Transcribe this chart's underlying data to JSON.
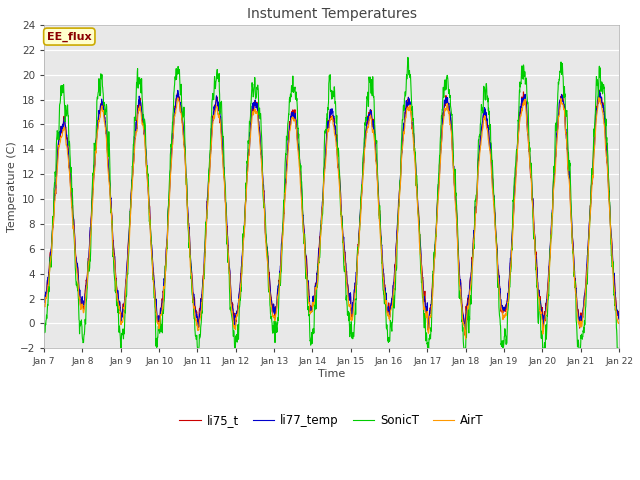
{
  "title": "Instument Temperatures",
  "xlabel": "Time",
  "ylabel": "Temperature (C)",
  "ylim": [
    -2,
    24
  ],
  "yticks": [
    -2,
    0,
    2,
    4,
    6,
    8,
    10,
    12,
    14,
    16,
    18,
    20,
    22,
    24
  ],
  "colors": {
    "li75_t": "#cc0000",
    "li77_temp": "#0000cc",
    "SonicT": "#00cc00",
    "AirT": "#ff9900"
  },
  "fig_bg": "#ffffff",
  "plot_bg": "#e8e8e8",
  "annotation_text": "EE_flux",
  "annotation_bg": "#ffffcc",
  "annotation_border": "#ccaa00",
  "x_labels": [
    "Jan 7",
    "Jan 8",
    "Jan 9",
    "Jan 10",
    "Jan 11",
    "Jan 12",
    "Jan 13",
    "Jan 14",
    "Jan 15",
    "Jan 16",
    "Jan 17",
    "Jan 18",
    "Jan 19",
    "Jan 20",
    "Jan 21",
    "Jan 22"
  ],
  "n_days": 15,
  "pts_per_day": 144
}
